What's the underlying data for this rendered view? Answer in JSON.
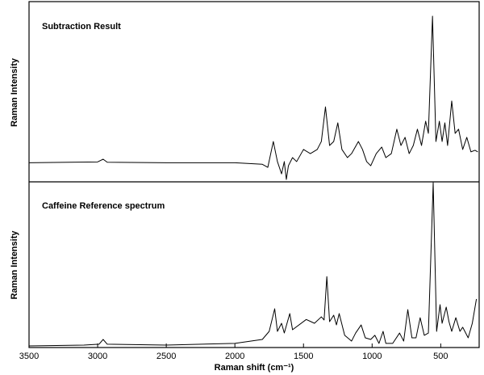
{
  "chart_data": [
    {
      "type": "line",
      "title": "Subtraction Result",
      "ylabel": "Raman Intensity",
      "color": "#000000",
      "xlim": [
        3500,
        220
      ],
      "ylim": [
        -12,
        100
      ],
      "x": [
        3500,
        3200,
        3000,
        2960,
        2930,
        2500,
        2000,
        1800,
        1760,
        1720,
        1690,
        1660,
        1640,
        1625,
        1610,
        1580,
        1550,
        1500,
        1450,
        1400,
        1370,
        1340,
        1310,
        1280,
        1250,
        1220,
        1180,
        1150,
        1100,
        1070,
        1040,
        1010,
        970,
        930,
        900,
        860,
        820,
        790,
        760,
        730,
        700,
        670,
        640,
        610,
        590,
        560,
        535,
        510,
        490,
        470,
        450,
        420,
        395,
        370,
        340,
        310,
        280,
        250,
        230
      ],
      "values": [
        0,
        0.3,
        0.5,
        2.2,
        0.3,
        0,
        0,
        -1,
        -2.9,
        13.3,
        0.7,
        -7,
        0.7,
        -10.5,
        -1.9,
        3.2,
        0.7,
        8.3,
        5.7,
        8.3,
        13.3,
        35,
        10.8,
        13.3,
        25,
        8.3,
        3.2,
        5.7,
        13.3,
        8.3,
        0.7,
        -1.9,
        5.7,
        9.8,
        3.2,
        5.7,
        21,
        10.8,
        15.9,
        5.7,
        10.8,
        21,
        10.8,
        26,
        18.4,
        91.9,
        13.3,
        26,
        13.3,
        25,
        10.8,
        38.7,
        18.4,
        21,
        8.3,
        15.9,
        6.8,
        7.8,
        6.8
      ]
    },
    {
      "type": "line",
      "title": "Caffeine Reference spectrum",
      "ylabel": "Raman Intensity",
      "xlabel": "Raman shift (cm⁻¹)",
      "color": "#000000",
      "xlim": [
        3500,
        220
      ],
      "ylim": [
        0,
        100
      ],
      "xticks": [
        3500,
        3000,
        2500,
        2000,
        1500,
        1000,
        500
      ],
      "x": [
        3500,
        3100,
        2990,
        2960,
        2930,
        2500,
        2000,
        1800,
        1750,
        1710,
        1690,
        1660,
        1640,
        1600,
        1580,
        1480,
        1420,
        1370,
        1350,
        1330,
        1310,
        1280,
        1260,
        1240,
        1200,
        1150,
        1120,
        1080,
        1050,
        1010,
        980,
        950,
        920,
        900,
        850,
        800,
        770,
        740,
        710,
        680,
        650,
        620,
        590,
        555,
        530,
        505,
        490,
        460,
        440,
        420,
        390,
        360,
        340,
        300,
        270,
        240
      ],
      "values": [
        1,
        1.5,
        2,
        4.9,
        2,
        1.5,
        2.5,
        4.9,
        9.8,
        23.5,
        9.8,
        14.7,
        8.8,
        20.6,
        10.8,
        17,
        14.7,
        18.6,
        16.7,
        43,
        15.7,
        19.6,
        13.7,
        20.6,
        7.4,
        3.9,
        8.8,
        13.7,
        5.9,
        4.9,
        7.4,
        2.5,
        9.8,
        2.5,
        2.5,
        8.8,
        3.9,
        23,
        5.9,
        5.9,
        18.1,
        7.4,
        8.8,
        100,
        9.8,
        26,
        14.7,
        24.5,
        15.7,
        9.8,
        18.1,
        9.8,
        12.3,
        5.9,
        14.7,
        29.4
      ]
    }
  ]
}
